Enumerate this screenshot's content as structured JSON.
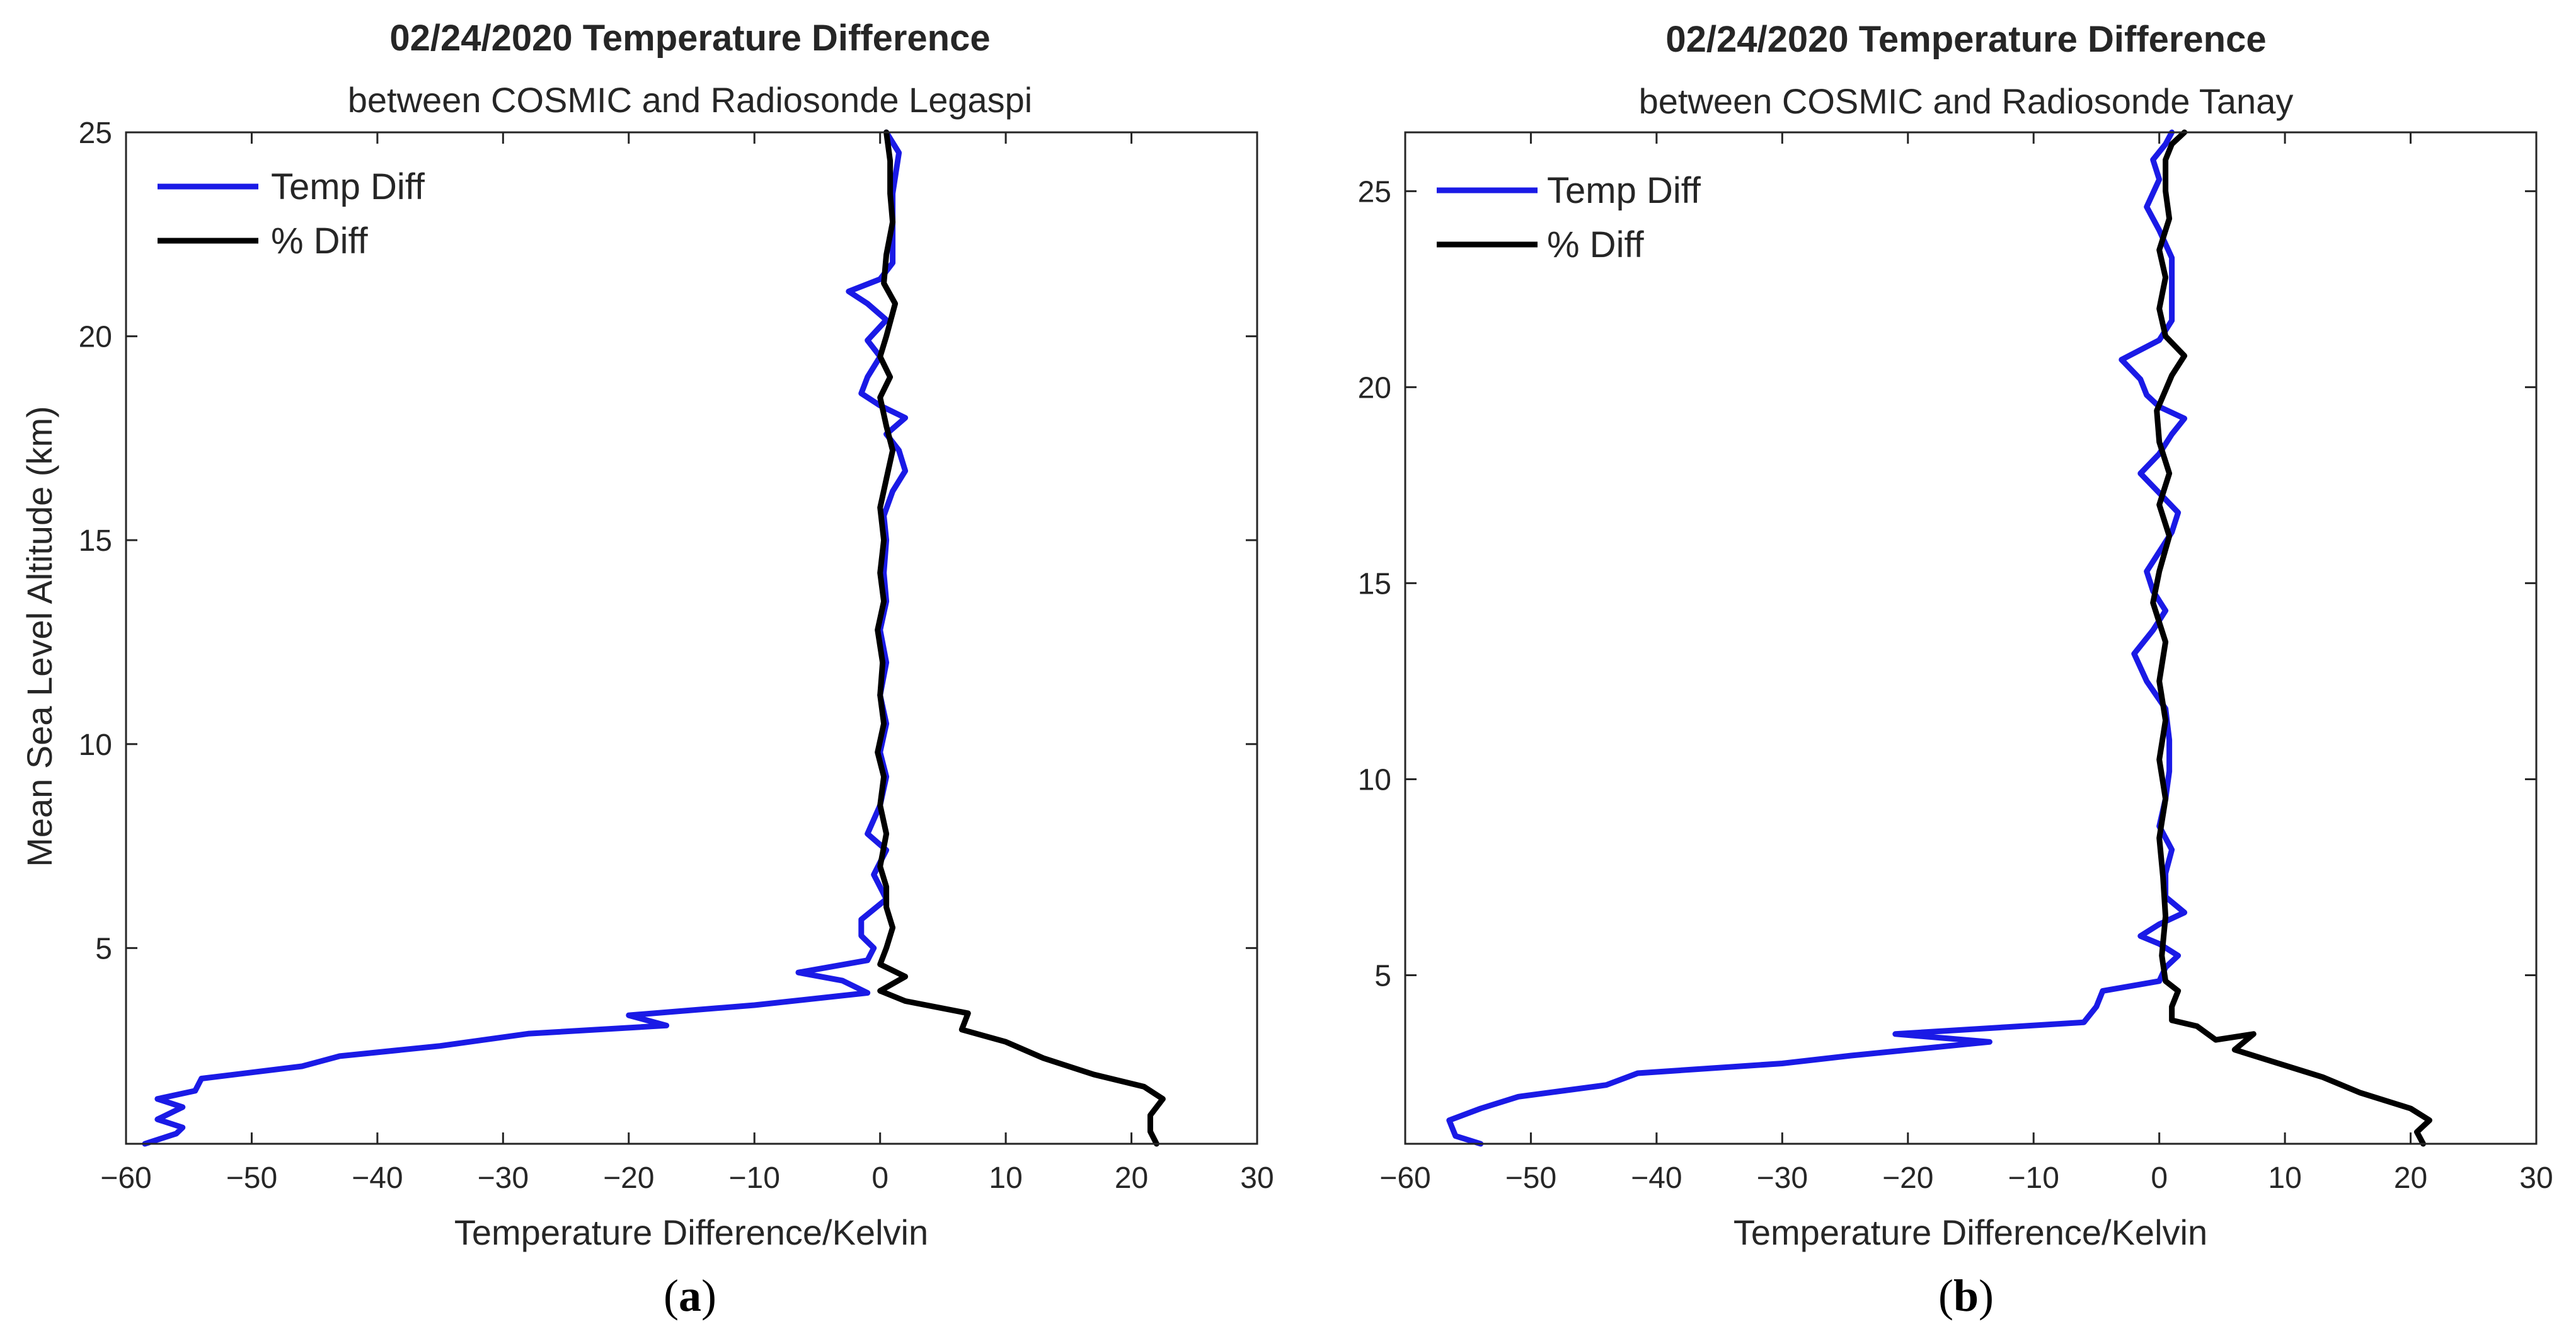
{
  "colors": {
    "temp_diff": "#1a1ae6",
    "pct_diff": "#000000",
    "axis": "#262626"
  },
  "chart_data": [
    {
      "type": "line",
      "panel_label_open": "(",
      "panel_label_letter": "a",
      "panel_label_close": ")",
      "title": "02/24/2020 Temperature Difference",
      "subtitle": "between COSMIC and Radiosonde Legaspi",
      "xlabel": "Temperature Difference/Kelvin",
      "ylabel": "Mean Sea Level Altitude (km)",
      "xlim": [
        -60,
        30
      ],
      "ylim": [
        0.2,
        25
      ],
      "xticks": [
        -60,
        -50,
        -40,
        -30,
        -20,
        -10,
        0,
        10,
        20,
        30
      ],
      "xtick_labels": [
        "−60",
        "−50",
        "−40",
        "−30",
        "−20",
        "−10",
        "0",
        "10",
        "20",
        "30"
      ],
      "yticks": [
        5,
        10,
        15,
        20,
        25
      ],
      "ytick_labels": [
        "5",
        "10",
        "15",
        "20",
        "25"
      ],
      "legend": [
        "Temp Diff",
        "% Diff"
      ],
      "legend_position": "top-left",
      "grid": false,
      "series": [
        {
          "name": "Temp Diff",
          "points": [
            [
              -58.5,
              0.2
            ],
            [
              -56,
              0.45
            ],
            [
              -55.5,
              0.6
            ],
            [
              -57.5,
              0.8
            ],
            [
              -55.5,
              1.1
            ],
            [
              -57.5,
              1.3
            ],
            [
              -54.5,
              1.5
            ],
            [
              -54,
              1.8
            ],
            [
              -46,
              2.1
            ],
            [
              -43,
              2.35
            ],
            [
              -35,
              2.6
            ],
            [
              -28,
              2.9
            ],
            [
              -17,
              3.1
            ],
            [
              -20,
              3.35
            ],
            [
              -10,
              3.6
            ],
            [
              -1,
              3.9
            ],
            [
              -3,
              4.2
            ],
            [
              -6.5,
              4.4
            ],
            [
              -1,
              4.7
            ],
            [
              -0.5,
              5.0
            ],
            [
              -1.5,
              5.3
            ],
            [
              -1.5,
              5.7
            ],
            [
              0.5,
              6.2
            ],
            [
              -0.5,
              6.8
            ],
            [
              0.5,
              7.4
            ],
            [
              -1,
              7.8
            ],
            [
              0,
              8.5
            ],
            [
              0.5,
              9.2
            ],
            [
              0,
              9.8
            ],
            [
              0.5,
              10.5
            ],
            [
              0,
              11.2
            ],
            [
              0.5,
              12.0
            ],
            [
              0,
              12.8
            ],
            [
              0.5,
              13.5
            ],
            [
              0.3,
              14.2
            ],
            [
              0.5,
              15.0
            ],
            [
              0.3,
              15.6
            ],
            [
              1,
              16.2
            ],
            [
              2,
              16.7
            ],
            [
              1.5,
              17.2
            ],
            [
              0.5,
              17.6
            ],
            [
              2,
              18.0
            ],
            [
              0,
              18.3
            ],
            [
              -1.5,
              18.6
            ],
            [
              -1,
              19.0
            ],
            [
              0,
              19.5
            ],
            [
              -1,
              19.9
            ],
            [
              0.5,
              20.4
            ],
            [
              -1,
              20.8
            ],
            [
              -2.5,
              21.1
            ],
            [
              0,
              21.4
            ],
            [
              1,
              21.8
            ],
            [
              1,
              22.5
            ],
            [
              1,
              23.5
            ],
            [
              1.5,
              24.5
            ],
            [
              0.5,
              25
            ]
          ]
        },
        {
          "name": "% Diff",
          "points": [
            [
              22,
              0.2
            ],
            [
              21.5,
              0.5
            ],
            [
              21.5,
              0.9
            ],
            [
              22.5,
              1.3
            ],
            [
              21,
              1.6
            ],
            [
              17,
              1.9
            ],
            [
              13,
              2.3
            ],
            [
              10,
              2.7
            ],
            [
              6.5,
              3.0
            ],
            [
              7,
              3.4
            ],
            [
              2,
              3.7
            ],
            [
              0,
              3.95
            ],
            [
              2,
              4.3
            ],
            [
              0,
              4.6
            ],
            [
              0.5,
              5.0
            ],
            [
              1,
              5.5
            ],
            [
              0.5,
              6.0
            ],
            [
              0.5,
              6.5
            ],
            [
              0,
              7.0
            ],
            [
              0.5,
              7.8
            ],
            [
              0,
              8.5
            ],
            [
              0.3,
              9.2
            ],
            [
              -0.2,
              9.8
            ],
            [
              0.3,
              10.5
            ],
            [
              0,
              11.2
            ],
            [
              0.2,
              12.0
            ],
            [
              -0.2,
              12.8
            ],
            [
              0.3,
              13.5
            ],
            [
              0,
              14.2
            ],
            [
              0.3,
              15.0
            ],
            [
              0,
              15.8
            ],
            [
              0.5,
              16.5
            ],
            [
              1,
              17.2
            ],
            [
              0.5,
              17.8
            ],
            [
              0,
              18.5
            ],
            [
              0.8,
              19.0
            ],
            [
              0,
              19.5
            ],
            [
              0.5,
              20.0
            ],
            [
              1.2,
              20.8
            ],
            [
              0.3,
              21.3
            ],
            [
              0.5,
              22.0
            ],
            [
              1,
              22.8
            ],
            [
              0.8,
              23.5
            ],
            [
              0.8,
              24.3
            ],
            [
              0.5,
              25
            ]
          ]
        }
      ]
    },
    {
      "type": "line",
      "panel_label_open": "(",
      "panel_label_letter": "b",
      "panel_label_close": ")",
      "title": "02/24/2020 Temperature Difference",
      "subtitle": "between COSMIC and Radiosonde Tanay",
      "xlabel": "Temperature Difference/Kelvin",
      "ylabel": "",
      "xlim": [
        -60,
        30
      ],
      "ylim": [
        0.7,
        26.5
      ],
      "xticks": [
        -60,
        -50,
        -40,
        -30,
        -20,
        -10,
        0,
        10,
        20,
        30
      ],
      "xtick_labels": [
        "−60",
        "−50",
        "−40",
        "−30",
        "−20",
        "−10",
        "0",
        "10",
        "20",
        "30"
      ],
      "yticks": [
        5,
        10,
        15,
        20,
        25
      ],
      "ytick_labels": [
        "5",
        "10",
        "15",
        "20",
        "25"
      ],
      "legend": [
        "Temp Diff",
        "% Diff"
      ],
      "legend_position": "top-left",
      "grid": false,
      "series": [
        {
          "name": "Temp Diff",
          "points": [
            [
              -54,
              0.7
            ],
            [
              -56,
              0.9
            ],
            [
              -56.5,
              1.3
            ],
            [
              -54,
              1.6
            ],
            [
              -51,
              1.9
            ],
            [
              -44,
              2.2
            ],
            [
              -41.5,
              2.5
            ],
            [
              -30,
              2.75
            ],
            [
              -24.5,
              2.95
            ],
            [
              -13.5,
              3.3
            ],
            [
              -21,
              3.5
            ],
            [
              -6,
              3.8
            ],
            [
              -5,
              4.2
            ],
            [
              -4.5,
              4.6
            ],
            [
              0,
              4.85
            ],
            [
              0.5,
              5.2
            ],
            [
              1.5,
              5.5
            ],
            [
              0,
              5.8
            ],
            [
              -1.5,
              6.0
            ],
            [
              0,
              6.3
            ],
            [
              2,
              6.6
            ],
            [
              0.5,
              7.0
            ],
            [
              0.5,
              7.6
            ],
            [
              1,
              8.2
            ],
            [
              0,
              8.8
            ],
            [
              0.5,
              9.5
            ],
            [
              0.8,
              10.2
            ],
            [
              0.8,
              11.0
            ],
            [
              0.5,
              11.8
            ],
            [
              -1,
              12.5
            ],
            [
              -2,
              13.2
            ],
            [
              -0.5,
              13.8
            ],
            [
              0.5,
              14.3
            ],
            [
              -0.5,
              14.8
            ],
            [
              -1,
              15.3
            ],
            [
              0,
              15.8
            ],
            [
              1,
              16.3
            ],
            [
              1.5,
              16.8
            ],
            [
              0,
              17.3
            ],
            [
              -1.5,
              17.8
            ],
            [
              0,
              18.3
            ],
            [
              1,
              18.8
            ],
            [
              2,
              19.2
            ],
            [
              0,
              19.5
            ],
            [
              -1,
              19.8
            ],
            [
              -1.5,
              20.2
            ],
            [
              -3,
              20.7
            ],
            [
              0,
              21.2
            ],
            [
              1,
              21.7
            ],
            [
              1,
              22.5
            ],
            [
              1,
              23.3
            ],
            [
              0,
              24.0
            ],
            [
              -1,
              24.6
            ],
            [
              0,
              25.3
            ],
            [
              -0.5,
              25.8
            ],
            [
              0.5,
              26.2
            ],
            [
              1,
              26.5
            ]
          ]
        },
        {
          "name": "% Diff",
          "points": [
            [
              21,
              0.7
            ],
            [
              20.5,
              1.0
            ],
            [
              21.5,
              1.3
            ],
            [
              20,
              1.6
            ],
            [
              16,
              2.0
            ],
            [
              13,
              2.4
            ],
            [
              9,
              2.8
            ],
            [
              6,
              3.1
            ],
            [
              7.5,
              3.5
            ],
            [
              4.5,
              3.35
            ],
            [
              3,
              3.7
            ],
            [
              1,
              3.85
            ],
            [
              1,
              4.2
            ],
            [
              1.5,
              4.6
            ],
            [
              0.5,
              4.85
            ],
            [
              0.2,
              5.5
            ],
            [
              0.5,
              6.5
            ],
            [
              0.3,
              7.5
            ],
            [
              0,
              8.5
            ],
            [
              0.5,
              9.5
            ],
            [
              0,
              10.5
            ],
            [
              0.5,
              11.5
            ],
            [
              0,
              12.5
            ],
            [
              0.5,
              13.5
            ],
            [
              -0.5,
              14.5
            ],
            [
              0,
              15.3
            ],
            [
              0.8,
              16.2
            ],
            [
              0,
              17.0
            ],
            [
              0.8,
              17.8
            ],
            [
              0,
              18.6
            ],
            [
              -0.2,
              19.4
            ],
            [
              1,
              20.3
            ],
            [
              2,
              20.8
            ],
            [
              0.5,
              21.3
            ],
            [
              0,
              22.0
            ],
            [
              0.5,
              22.8
            ],
            [
              0,
              23.5
            ],
            [
              0.8,
              24.3
            ],
            [
              0.5,
              25.0
            ],
            [
              0.5,
              25.8
            ],
            [
              1,
              26.2
            ],
            [
              2,
              26.5
            ]
          ]
        }
      ]
    }
  ]
}
